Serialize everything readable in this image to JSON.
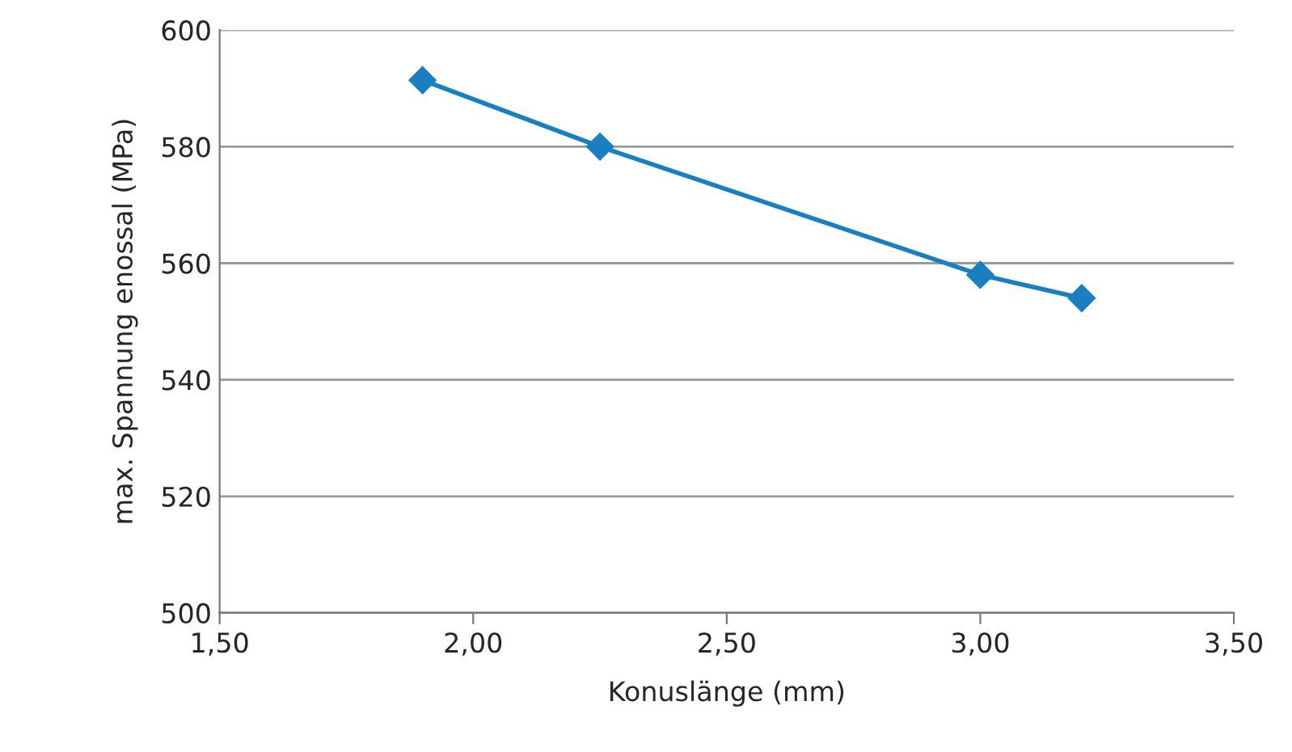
{
  "chart_data": {
    "type": "line",
    "xlabel": "Konuslänge (mm)",
    "ylabel": "max. Spannung enossal (MPa)",
    "x": [
      1.9,
      2.25,
      3.0,
      3.2
    ],
    "series": [
      {
        "color": "#1a7fc1",
        "values": [
          591.4,
          580,
          558,
          554
        ]
      }
    ],
    "xlim": [
      1.5,
      3.5
    ],
    "xticks": [
      {
        "value": 1.5,
        "label": "1,50"
      },
      {
        "value": 2.0,
        "label": "2,00"
      },
      {
        "value": 2.5,
        "label": "2,50"
      },
      {
        "value": 3.0,
        "label": "3,00"
      },
      {
        "value": 3.5,
        "label": "3,50"
      }
    ],
    "ylim": [
      500,
      600
    ],
    "yticks": [
      500,
      520,
      540,
      560,
      580,
      600
    ],
    "grid": "y",
    "marker": "diamond",
    "line_style": "solid"
  }
}
